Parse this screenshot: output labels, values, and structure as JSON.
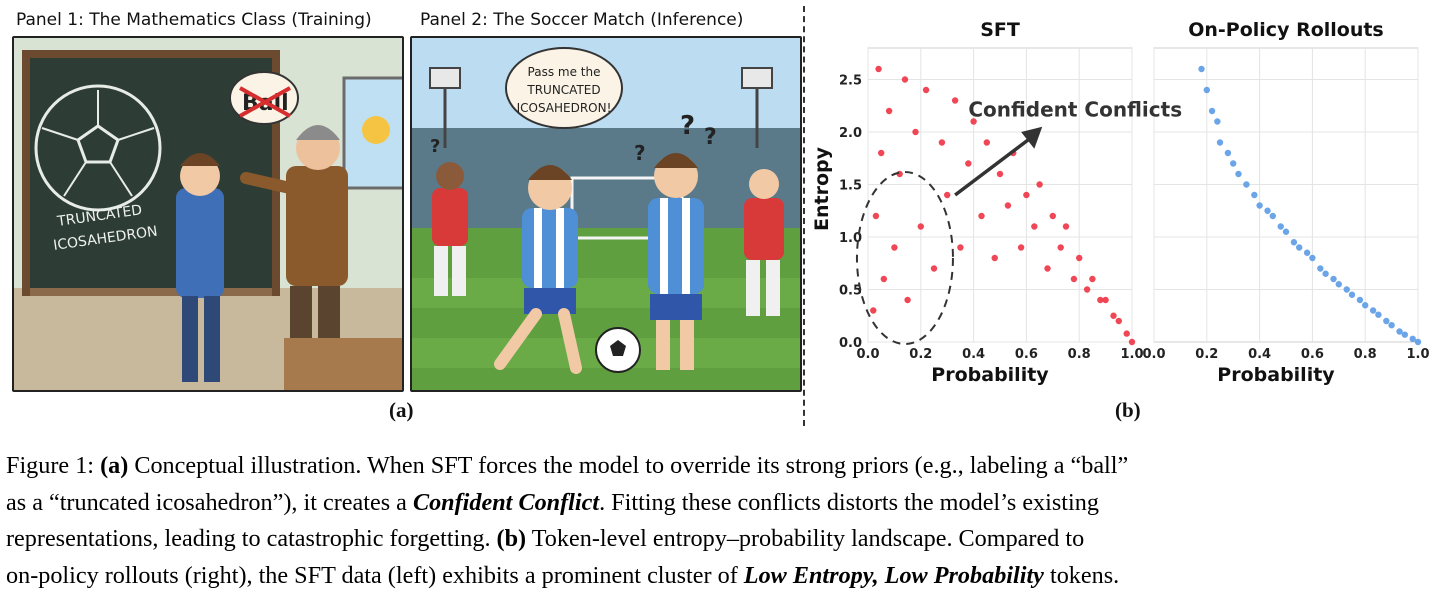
{
  "panel_a": {
    "panel1_title": "Panel 1: The Mathematics Class (Training)",
    "panel2_title": "Panel 2: The Soccer Match (Inference)",
    "board_text_line1": "TRUNCATED",
    "board_text_line2": "ICOSAHEDRON",
    "speech_bubble_word": "Ball",
    "speech_line1": "Pass me the",
    "speech_line2": "TRUNCATED",
    "speech_line3": "ICOSAHEDRON!",
    "question_mark": "?",
    "label": "(a)"
  },
  "panel_b": {
    "label": "(b)",
    "annotation": "Confident Conflicts",
    "colors": {
      "sft": "#ee3344",
      "onpolicy": "#5b9be6"
    }
  },
  "chart_data": [
    {
      "type": "scatter",
      "title": "SFT",
      "xlabel": "Probability",
      "ylabel": "Entropy",
      "xlim": [
        0,
        1
      ],
      "ylim": [
        0,
        2.8
      ],
      "xticks": [
        "0.0",
        "0.2",
        "0.4",
        "0.6",
        "0.8",
        "1.0"
      ],
      "yticks": [
        "0.0",
        "0.5",
        "1.0",
        "1.5",
        "2.0",
        "2.5"
      ],
      "grid": true,
      "series": [
        {
          "color": "#ee3344",
          "points": [
            [
              0.02,
              0.3
            ],
            [
              0.03,
              1.2
            ],
            [
              0.04,
              2.6
            ],
            [
              0.05,
              1.8
            ],
            [
              0.06,
              0.6
            ],
            [
              0.08,
              2.2
            ],
            [
              0.1,
              0.9
            ],
            [
              0.12,
              1.6
            ],
            [
              0.14,
              2.5
            ],
            [
              0.15,
              0.4
            ],
            [
              0.18,
              2.0
            ],
            [
              0.2,
              1.1
            ],
            [
              0.22,
              2.4
            ],
            [
              0.25,
              0.7
            ],
            [
              0.28,
              1.9
            ],
            [
              0.3,
              1.4
            ],
            [
              0.33,
              2.3
            ],
            [
              0.35,
              0.9
            ],
            [
              0.38,
              1.7
            ],
            [
              0.4,
              2.1
            ],
            [
              0.43,
              1.2
            ],
            [
              0.45,
              1.9
            ],
            [
              0.48,
              0.8
            ],
            [
              0.5,
              1.6
            ],
            [
              0.53,
              1.3
            ],
            [
              0.55,
              1.8
            ],
            [
              0.58,
              0.9
            ],
            [
              0.6,
              1.4
            ],
            [
              0.63,
              1.1
            ],
            [
              0.65,
              1.5
            ],
            [
              0.68,
              0.7
            ],
            [
              0.7,
              1.2
            ],
            [
              0.73,
              0.9
            ],
            [
              0.75,
              1.1
            ],
            [
              0.78,
              0.6
            ],
            [
              0.8,
              0.8
            ],
            [
              0.83,
              0.5
            ],
            [
              0.85,
              0.6
            ],
            [
              0.88,
              0.4
            ],
            [
              0.9,
              0.4
            ],
            [
              0.93,
              0.25
            ],
            [
              0.95,
              0.2
            ],
            [
              0.98,
              0.08
            ],
            [
              1.0,
              0.0
            ]
          ]
        }
      ]
    },
    {
      "type": "scatter",
      "title": "On-Policy Rollouts",
      "xlabel": "Probability",
      "ylabel": "",
      "xlim": [
        0,
        1
      ],
      "ylim": [
        0,
        2.8
      ],
      "xticks": [
        "0.0",
        "0.2",
        "0.4",
        "0.6",
        "0.8",
        "1.0"
      ],
      "grid": true,
      "series": [
        {
          "color": "#5b9be6",
          "points": [
            [
              0.18,
              2.6
            ],
            [
              0.2,
              2.4
            ],
            [
              0.22,
              2.2
            ],
            [
              0.24,
              2.1
            ],
            [
              0.25,
              1.9
            ],
            [
              0.28,
              1.8
            ],
            [
              0.3,
              1.7
            ],
            [
              0.32,
              1.6
            ],
            [
              0.35,
              1.5
            ],
            [
              0.38,
              1.4
            ],
            [
              0.4,
              1.3
            ],
            [
              0.43,
              1.25
            ],
            [
              0.45,
              1.2
            ],
            [
              0.48,
              1.1
            ],
            [
              0.5,
              1.05
            ],
            [
              0.53,
              0.95
            ],
            [
              0.55,
              0.9
            ],
            [
              0.58,
              0.85
            ],
            [
              0.6,
              0.8
            ],
            [
              0.63,
              0.7
            ],
            [
              0.65,
              0.65
            ],
            [
              0.68,
              0.6
            ],
            [
              0.7,
              0.55
            ],
            [
              0.73,
              0.5
            ],
            [
              0.75,
              0.45
            ],
            [
              0.78,
              0.4
            ],
            [
              0.8,
              0.35
            ],
            [
              0.83,
              0.3
            ],
            [
              0.85,
              0.26
            ],
            [
              0.88,
              0.2
            ],
            [
              0.9,
              0.16
            ],
            [
              0.93,
              0.1
            ],
            [
              0.95,
              0.07
            ],
            [
              0.98,
              0.03
            ],
            [
              1.0,
              0.0
            ]
          ]
        }
      ]
    }
  ],
  "caption": {
    "fig": "Figure 1: ",
    "a": "(a)",
    "l1_rest": " Conceptual illustration. When SFT forces the model to override its strong priors (e.g., labeling a “ball”",
    "l2_pre": "as a “truncated icosahedron”), it creates a ",
    "l2_bold": "Confident Conflict",
    "l2_post": ". Fitting these conflicts distorts the model’s existing",
    "l3_pre": "representations, leading to catastrophic forgetting. ",
    "b": "(b)",
    "l3_post": " Token-level entropy–probability landscape. Compared to",
    "l4_pre": "on-policy rollouts (right), the SFT data (left) exhibits a prominent cluster of ",
    "l4_bold": "Low Entropy, Low Probability",
    "l4_post": " tokens."
  }
}
